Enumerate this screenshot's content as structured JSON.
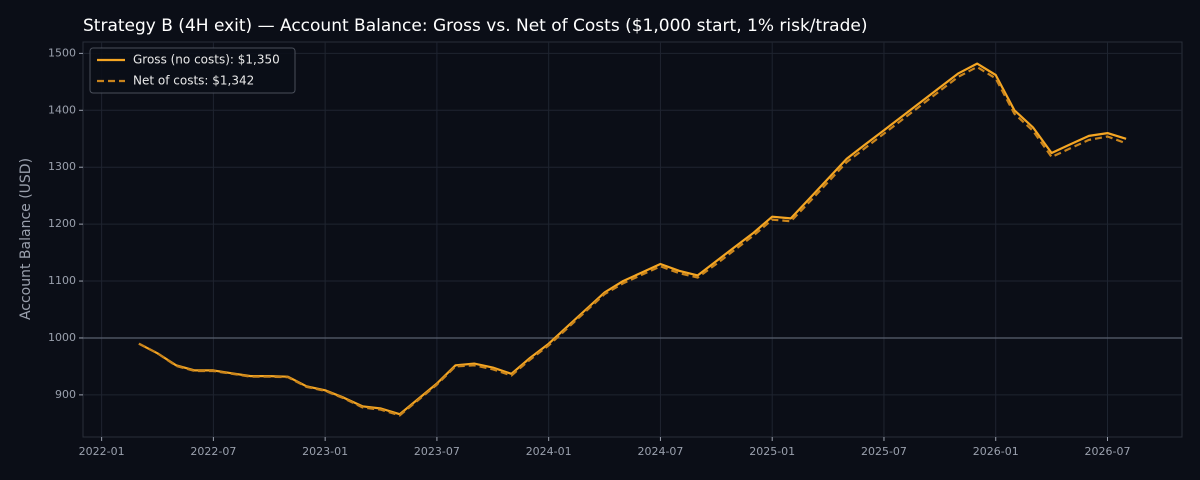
{
  "chart_data": {
    "type": "line",
    "title": "Strategy B (4H exit) — Account Balance: Gross vs. Net of Costs ($1,000 start, 1% risk/trade)",
    "y_label": "Account Balance (USD)",
    "x": [
      "2022-03",
      "2022-04",
      "2022-05",
      "2022-06",
      "2022-07",
      "2022-08",
      "2022-09",
      "2022-10",
      "2022-11",
      "2022-12",
      "2023-01",
      "2023-02",
      "2023-03",
      "2023-04",
      "2023-05",
      "2023-06",
      "2023-07",
      "2023-08",
      "2023-09",
      "2023-10",
      "2023-11",
      "2023-12",
      "2024-01",
      "2024-02",
      "2024-03",
      "2024-04",
      "2024-05",
      "2024-06",
      "2024-07",
      "2024-08",
      "2024-09",
      "2024-10",
      "2024-11",
      "2024-12",
      "2025-01",
      "2025-02",
      "2025-03",
      "2025-04",
      "2025-05",
      "2025-06",
      "2025-07",
      "2025-08",
      "2025-09",
      "2025-10",
      "2025-11",
      "2025-12",
      "2026-01",
      "2026-02",
      "2026-03",
      "2026-04",
      "2026-05",
      "2026-06",
      "2026-07",
      "2026-08"
    ],
    "series": [
      {
        "name": "Gross (no costs): $1,350",
        "color": "#f5a623",
        "dash": false,
        "values": [
          990,
          973,
          952,
          943,
          943,
          938,
          933,
          933,
          932,
          915,
          908,
          895,
          880,
          876,
          866,
          893,
          920,
          952,
          955,
          948,
          937,
          965,
          990,
          1020,
          1050,
          1080,
          1100,
          1115,
          1130,
          1118,
          1110,
          1135,
          1160,
          1185,
          1213,
          1210,
          1245,
          1280,
          1315,
          1340,
          1365,
          1390,
          1415,
          1440,
          1465,
          1482,
          1462,
          1400,
          1370,
          1325,
          1340,
          1355,
          1360,
          1350
        ]
      },
      {
        "name": "Net of costs: $1,342",
        "color": "#c9841c",
        "dash": true,
        "values": [
          990,
          973,
          951,
          942,
          942,
          937,
          932,
          932,
          931,
          914,
          907,
          894,
          878,
          874,
          864,
          891,
          918,
          950,
          952,
          945,
          934,
          962,
          987,
          1017,
          1047,
          1077,
          1096,
          1111,
          1126,
          1114,
          1106,
          1130,
          1155,
          1180,
          1208,
          1205,
          1239,
          1274,
          1309,
          1334,
          1359,
          1384,
          1409,
          1434,
          1459,
          1476,
          1456,
          1394,
          1364,
          1318,
          1333,
          1348,
          1354,
          1342
        ]
      }
    ],
    "baseline": 1000,
    "xlim": [
      "2021-12",
      "2026-11"
    ],
    "xticks": [
      "2022-01",
      "2022-07",
      "2023-01",
      "2023-07",
      "2024-01",
      "2024-07",
      "2025-01",
      "2025-07",
      "2026-01",
      "2026-07"
    ],
    "ylim": [
      826,
      1520
    ],
    "yticks": [
      900,
      1000,
      1100,
      1200,
      1300,
      1400,
      1500
    ],
    "grid": true,
    "legend": "upper-left"
  }
}
